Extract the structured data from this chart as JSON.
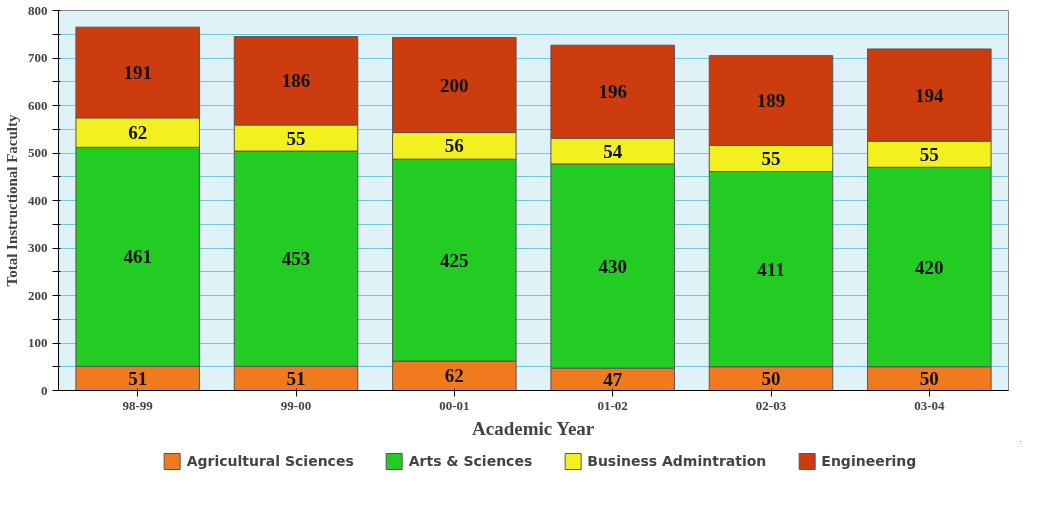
{
  "chart_data": {
    "type": "bar",
    "stacked": true,
    "xlabel": "Academic Year",
    "ylabel": "Total Instructional Faculty",
    "categories": [
      "98-99",
      "99-00",
      "00-01",
      "01-02",
      "02-03",
      "03-04"
    ],
    "series": [
      {
        "name": "Agricultural Sciences",
        "color": "#f07a1e",
        "values": [
          51,
          51,
          62,
          47,
          50,
          50
        ]
      },
      {
        "name": "Arts & Sciences",
        "color": "#22cc22",
        "values": [
          461,
          453,
          425,
          430,
          411,
          420
        ]
      },
      {
        "name": "Business Admintration",
        "color": "#f2f01e",
        "values": [
          62,
          55,
          56,
          54,
          55,
          55
        ]
      },
      {
        "name": "Engineering",
        "color": "#cc3c0e",
        "values": [
          191,
          186,
          200,
          196,
          189,
          194
        ]
      }
    ],
    "ylim": [
      0,
      800
    ],
    "yticks": [
      0,
      {
        "value": 50,
        "label": null
      },
      100,
      {
        "value": 150,
        "label": null
      },
      200,
      {
        "value": 250,
        "label": null
      },
      300,
      {
        "value": 350,
        "label": null
      },
      400,
      {
        "value": 450,
        "label": null
      },
      500,
      {
        "value": 550,
        "label": null
      },
      600,
      {
        "value": 650,
        "label": null
      },
      700,
      {
        "value": 750,
        "label": null
      },
      800
    ],
    "grid": "y",
    "legend": "bottom",
    "data_labels": true
  }
}
